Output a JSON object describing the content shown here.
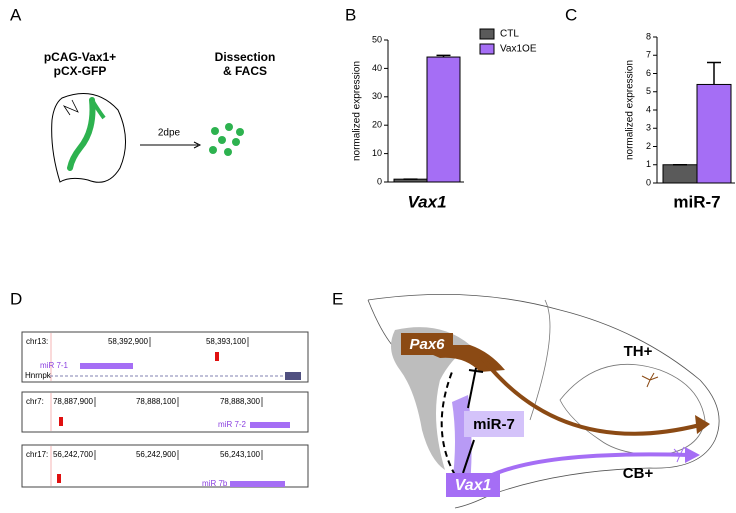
{
  "panel_a": {
    "label": "A",
    "construct": [
      "pCAG-Vax1+",
      "pCX-GFP"
    ],
    "step": [
      "Dissection",
      "& FACS"
    ],
    "arrow": "2dpe"
  },
  "chart_data": [
    {
      "type": "bar",
      "panel": "B",
      "y_label": "normalized expression",
      "categories": [
        "Vax1"
      ],
      "ylim": [
        0,
        50
      ],
      "yticks": [
        0,
        10,
        20,
        30,
        40,
        50
      ],
      "series": [
        {
          "name": "CTL",
          "color": "#5a5a5a",
          "values": [
            1
          ],
          "errors": [
            0
          ]
        },
        {
          "name": "Vax1OE",
          "color": "#a56ef5",
          "values": [
            44
          ],
          "errors": [
            0.6
          ]
        }
      ]
    },
    {
      "type": "bar",
      "panel": "C",
      "y_label": "normalized expression",
      "categories": [
        "miR-7"
      ],
      "ylim": [
        0,
        8
      ],
      "yticks": [
        0,
        1,
        2,
        3,
        4,
        5,
        6,
        7,
        8
      ],
      "series": [
        {
          "color": "#5a5a5a",
          "values": [
            1
          ],
          "errors": [
            0
          ]
        },
        {
          "color": "#a56ef5",
          "values": [
            5.4
          ],
          "errors": [
            1.2
          ]
        }
      ]
    }
  ],
  "panel_d": {
    "label": "D",
    "tracks": [
      {
        "chrom": "chr13:",
        "ticks": [
          "58,392,900",
          "58,393,100"
        ],
        "gene": "miR 7-1",
        "host": "Hnrnpk"
      },
      {
        "chrom": "chr7:",
        "ticks": [
          "78,887,900",
          "78,888,100",
          "78,888,300"
        ],
        "gene": "miR 7-2"
      },
      {
        "chrom": "chr17:",
        "ticks": [
          "56,242,700",
          "56,242,900",
          "56,243,100"
        ],
        "gene": "miR 7b"
      }
    ]
  },
  "panel_e": {
    "label": "E",
    "pax6": "Pax6",
    "th": "TH+",
    "mir7": "miR-7",
    "vax1": "Vax1",
    "cb": "CB+"
  }
}
